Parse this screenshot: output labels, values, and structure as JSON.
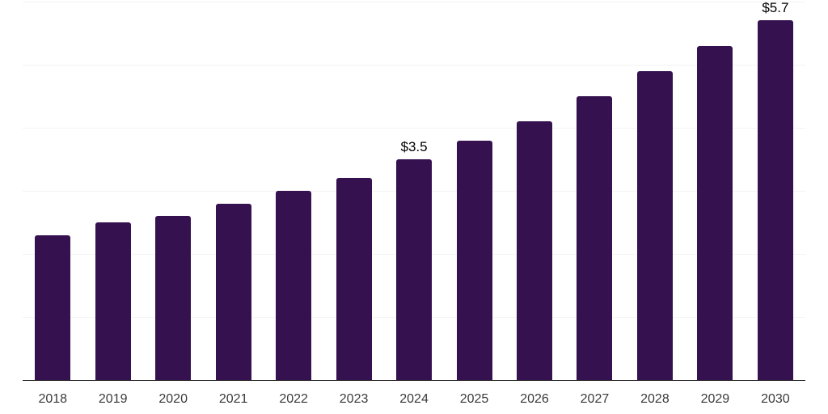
{
  "chart_data": {
    "type": "bar",
    "title": "",
    "xlabel": "",
    "ylabel": "",
    "categories": [
      "2018",
      "2019",
      "2020",
      "2021",
      "2022",
      "2023",
      "2024",
      "2025",
      "2026",
      "2027",
      "2028",
      "2029",
      "2030"
    ],
    "values": [
      2.3,
      2.5,
      2.6,
      2.8,
      3.0,
      3.2,
      3.5,
      3.8,
      4.1,
      4.5,
      4.9,
      5.3,
      5.7
    ],
    "data_labels": {
      "2024": "$3.5",
      "2030": "$5.7"
    },
    "ylim": [
      0,
      6
    ],
    "grid": true,
    "gridline_values": [
      1,
      2,
      3,
      4,
      5,
      6
    ],
    "legend_position": "none",
    "colors": {
      "bar": "#351150",
      "gridline": "#f3f3f3",
      "axis_line": "#222222",
      "tick_label": "#3a3a3a",
      "data_label": "#000000",
      "background": "#ffffff"
    }
  }
}
